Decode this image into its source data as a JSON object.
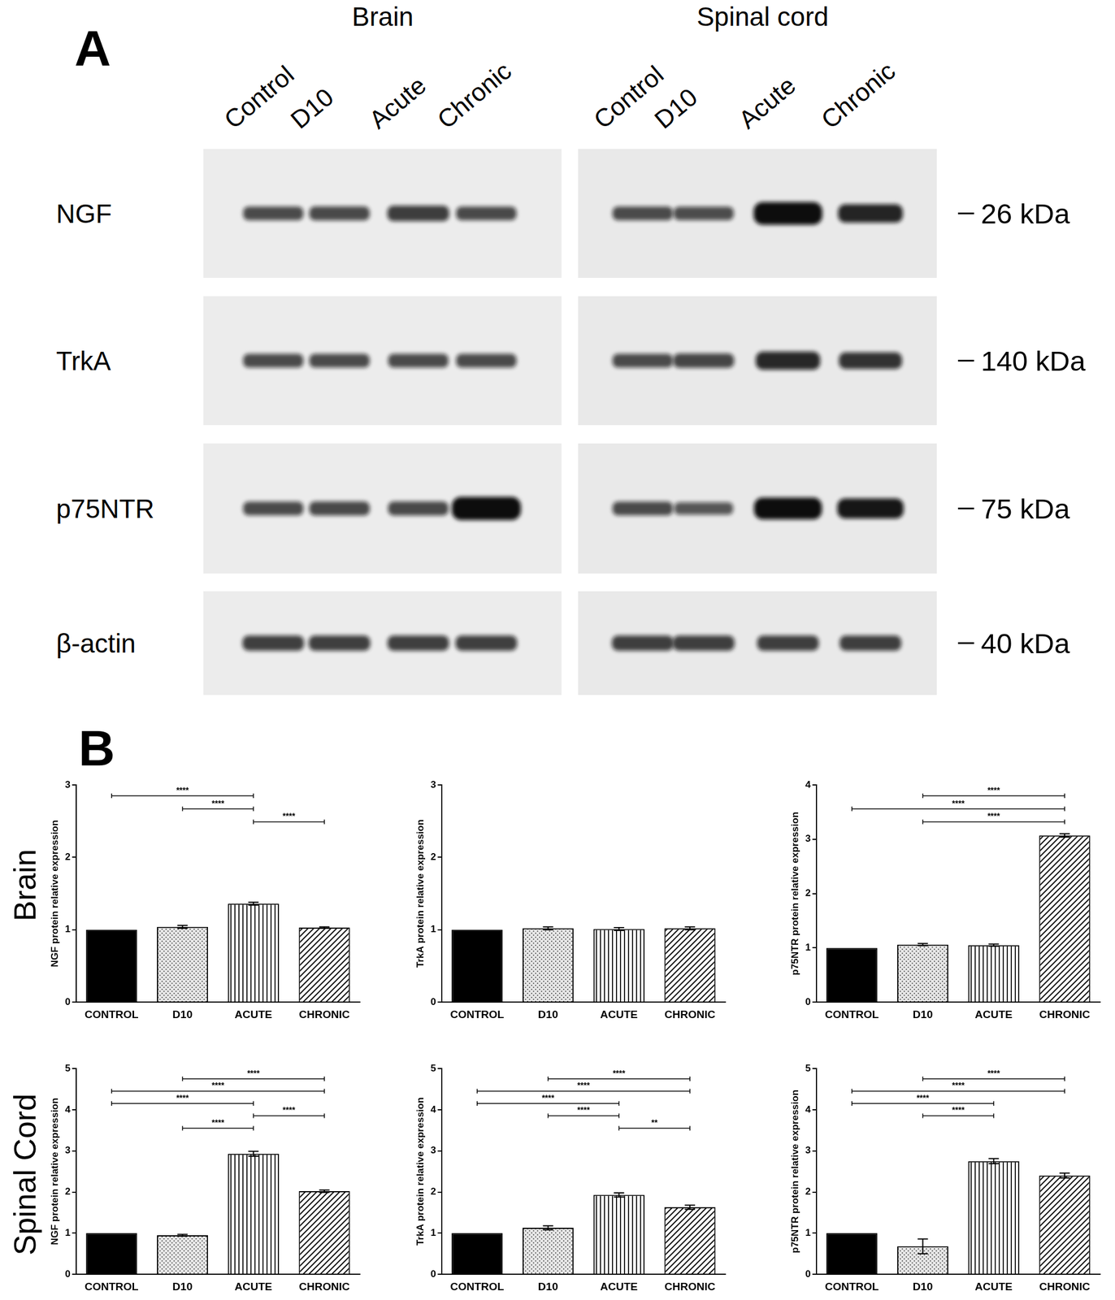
{
  "panel_a": {
    "label": "A",
    "tissues": [
      "Brain",
      "Spinal cord"
    ],
    "lanes": [
      "Control",
      "D10",
      "Acute",
      "Chronic"
    ],
    "rows": [
      {
        "label": "NGF",
        "kda_label": "26 kDa"
      },
      {
        "label": "TrkA",
        "kda_label": "140 kDa"
      },
      {
        "label": "p75NTR",
        "kda_label": "75 kDa"
      },
      {
        "label": "β-actin",
        "kda_label": "40 kDa"
      }
    ]
  },
  "panel_b": {
    "label": "B",
    "rows": [
      "Brain",
      "Spinal Cord"
    ]
  },
  "chart_data": [
    {
      "type": "bar",
      "categories": [
        "CONTROL",
        "D10",
        "ACUTE",
        "CHRONIC"
      ],
      "values": [
        1,
        1.04,
        1.36,
        1.03
      ],
      "errors": [
        0,
        0.02,
        0.02,
        0.01
      ],
      "colors": [
        "#000000",
        "#e6e6e6",
        "#ffffff",
        "#ffffff"
      ],
      "y_label": "NGF protein relative expression",
      "ylim": [
        0,
        3
      ],
      "yticks": [
        0,
        1,
        2,
        3
      ],
      "grid": false,
      "significance": [
        {
          "from": "CONTROL",
          "to": "ACUTE",
          "label": "****"
        },
        {
          "from": "D10",
          "to": "ACUTE",
          "label": "****"
        },
        {
          "from": "ACUTE",
          "to": "CHRONIC",
          "label": "****"
        }
      ]
    },
    {
      "type": "bar",
      "categories": [
        "CONTROL",
        "D10",
        "ACUTE",
        "CHRONIC"
      ],
      "values": [
        1,
        1.02,
        1.01,
        1.02
      ],
      "errors": [
        0,
        0.02,
        0.02,
        0.02
      ],
      "colors": [
        "#000000",
        "#e6e6e6",
        "#ffffff",
        "#ffffff"
      ],
      "y_label": "TrkA protein relative expression",
      "ylim": [
        0,
        3
      ],
      "yticks": [
        0,
        1,
        2,
        3
      ],
      "grid": false,
      "significance": []
    },
    {
      "type": "bar",
      "categories": [
        "CONTROL",
        "D10",
        "ACUTE",
        "CHRONIC"
      ],
      "values": [
        1,
        1.06,
        1.05,
        3.07
      ],
      "errors": [
        0,
        0.02,
        0.02,
        0.03
      ],
      "colors": [
        "#000000",
        "#e6e6e6",
        "#ffffff",
        "#ffffff"
      ],
      "y_label": "p75NTR protein relative expression",
      "ylim": [
        0,
        4
      ],
      "yticks": [
        0,
        1,
        2,
        3,
        4
      ],
      "grid": false,
      "significance": [
        {
          "from": "D10",
          "to": "CHRONIC",
          "label": "****"
        },
        {
          "from": "CONTROL",
          "to": "CHRONIC",
          "label": "****"
        },
        {
          "from": "D10",
          "to": "CHRONIC",
          "label": "****"
        }
      ]
    },
    {
      "type": "bar",
      "categories": [
        "CONTROL",
        "D10",
        "ACUTE",
        "CHRONIC"
      ],
      "values": [
        1,
        0.95,
        2.93,
        2.02
      ],
      "errors": [
        0,
        0.02,
        0.06,
        0.03
      ],
      "colors": [
        "#000000",
        "#e6e6e6",
        "#ffffff",
        "#ffffff"
      ],
      "y_label": "NGF protein relative expression",
      "ylim": [
        0,
        5
      ],
      "yticks": [
        0,
        1,
        2,
        3,
        4,
        5
      ],
      "grid": false,
      "significance": [
        {
          "from": "D10",
          "to": "CHRONIC",
          "label": "****"
        },
        {
          "from": "CONTROL",
          "to": "CHRONIC",
          "label": "****"
        },
        {
          "from": "CONTROL",
          "to": "ACUTE",
          "label": "****"
        },
        {
          "from": "ACUTE",
          "to": "CHRONIC",
          "label": "****"
        },
        {
          "from": "D10",
          "to": "ACUTE",
          "label": "****"
        }
      ]
    },
    {
      "type": "bar",
      "categories": [
        "CONTROL",
        "D10",
        "ACUTE",
        "CHRONIC"
      ],
      "values": [
        1,
        1.13,
        1.93,
        1.63
      ],
      "errors": [
        0,
        0.05,
        0.05,
        0.05
      ],
      "colors": [
        "#000000",
        "#e6e6e6",
        "#ffffff",
        "#ffffff"
      ],
      "y_label": "TrkA protein relative expression",
      "ylim": [
        0,
        5
      ],
      "yticks": [
        0,
        1,
        2,
        3,
        4,
        5
      ],
      "grid": false,
      "significance": [
        {
          "from": "D10",
          "to": "CHRONIC",
          "label": "****"
        },
        {
          "from": "CONTROL",
          "to": "CHRONIC",
          "label": "****"
        },
        {
          "from": "CONTROL",
          "to": "ACUTE",
          "label": "****"
        },
        {
          "from": "D10",
          "to": "ACUTE",
          "label": "****"
        },
        {
          "from": "ACUTE",
          "to": "CHRONIC",
          "label": "**"
        }
      ]
    },
    {
      "type": "bar",
      "categories": [
        "CONTROL",
        "D10",
        "ACUTE",
        "CHRONIC"
      ],
      "values": [
        1,
        0.68,
        2.75,
        2.4
      ],
      "errors": [
        0,
        0.18,
        0.06,
        0.06
      ],
      "colors": [
        "#000000",
        "#e6e6e6",
        "#ffffff",
        "#ffffff"
      ],
      "y_label": "p75NTR protein relative expression",
      "ylim": [
        0,
        5
      ],
      "yticks": [
        0,
        1,
        2,
        3,
        4,
        5
      ],
      "grid": false,
      "significance": [
        {
          "from": "D10",
          "to": "CHRONIC",
          "label": "****"
        },
        {
          "from": "CONTROL",
          "to": "CHRONIC",
          "label": "****"
        },
        {
          "from": "CONTROL",
          "to": "ACUTE",
          "label": "****"
        },
        {
          "from": "D10",
          "to": "ACUTE",
          "label": "****"
        }
      ]
    }
  ]
}
